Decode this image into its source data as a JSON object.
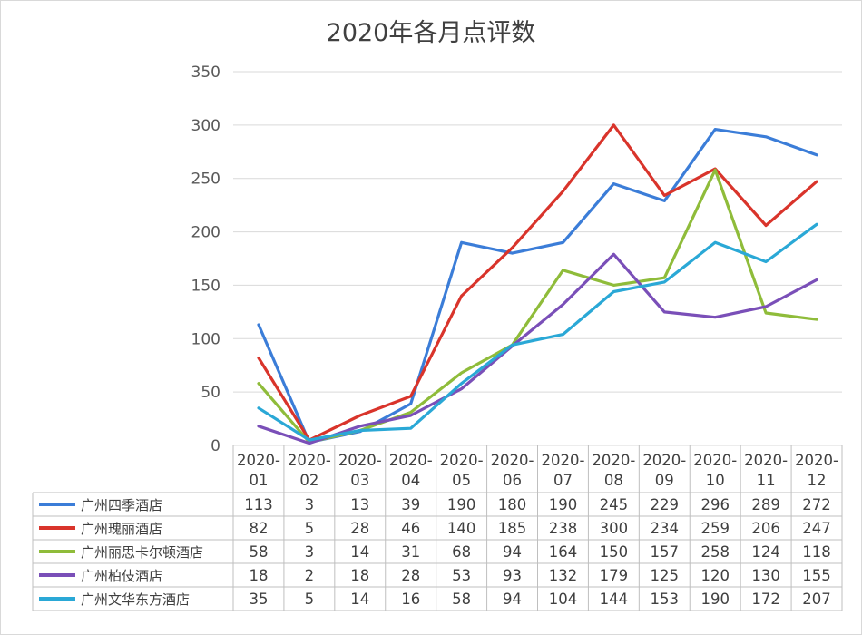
{
  "chart_data": {
    "type": "line",
    "title": "2020年各月点评数",
    "xlabel": "",
    "ylabel": "",
    "ylim": [
      0,
      350
    ],
    "yticks": [
      0,
      50,
      100,
      150,
      200,
      250,
      300,
      350
    ],
    "grid": true,
    "legend": "bottom-table",
    "categories": [
      [
        "2020-",
        "01"
      ],
      [
        "2020-",
        "02"
      ],
      [
        "2020-",
        "03"
      ],
      [
        "2020-",
        "04"
      ],
      [
        "2020-",
        "05"
      ],
      [
        "2020-",
        "06"
      ],
      [
        "2020-",
        "07"
      ],
      [
        "2020-",
        "08"
      ],
      [
        "2020-",
        "09"
      ],
      [
        "2020-",
        "10"
      ],
      [
        "2020-",
        "11"
      ],
      [
        "2020-",
        "12"
      ]
    ],
    "series": [
      {
        "name": "广州四季酒店",
        "color": "#3b7dd8",
        "values": [
          113,
          3,
          13,
          39,
          190,
          180,
          190,
          245,
          229,
          296,
          289,
          272
        ]
      },
      {
        "name": "广州瑰丽酒店",
        "color": "#d9342b",
        "values": [
          82,
          5,
          28,
          46,
          140,
          185,
          238,
          300,
          234,
          259,
          206,
          247
        ]
      },
      {
        "name": "广州丽思卡尔顿酒店",
        "color": "#8fbc3a",
        "values": [
          58,
          3,
          14,
          31,
          68,
          94,
          164,
          150,
          157,
          258,
          124,
          118
        ]
      },
      {
        "name": "广州柏伎酒店",
        "color": "#7a4fb8",
        "values": [
          18,
          2,
          18,
          28,
          53,
          93,
          132,
          179,
          125,
          120,
          130,
          155
        ]
      },
      {
        "name": "广州文华东方酒店",
        "color": "#2aa8d6",
        "values": [
          35,
          5,
          14,
          16,
          58,
          94,
          104,
          144,
          153,
          190,
          172,
          207
        ]
      }
    ]
  }
}
